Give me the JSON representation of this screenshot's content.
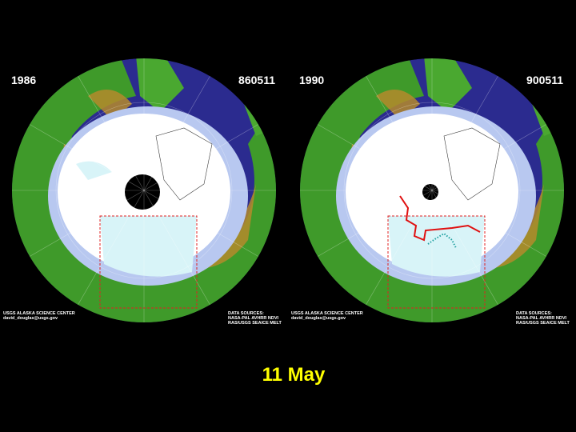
{
  "panels": [
    {
      "year": "1986",
      "date_code": "860511",
      "credit": [
        "USGS ALASKA SCIENCE CENTER",
        "david_douglas@usgs.gov"
      ],
      "sources": [
        "DATA SOURCES:",
        "NASA-PAL AVHRR NDVI",
        "RAS/USGS SEAICE MELT"
      ]
    },
    {
      "year": "1990",
      "date_code": "900511",
      "credit": [
        "USGS ALASKA SCIENCE CENTER",
        "david_douglas@usgs.gov"
      ],
      "sources": [
        "DATA SOURCES:",
        "NASA-PAL AVHRR NDVI",
        "RAS/USGS SEAICE MELT"
      ]
    }
  ],
  "caption": "11 May"
}
